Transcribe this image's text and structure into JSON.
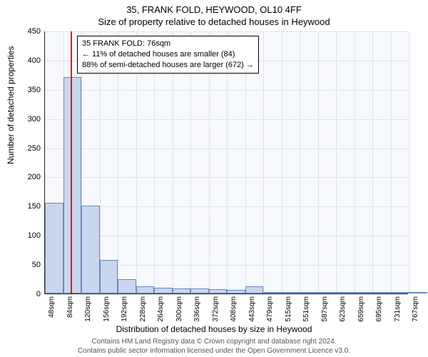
{
  "titles": {
    "line1": "35, FRANK FOLD, HEYWOOD, OL10 4FF",
    "line2": "Size of property relative to detached houses in Heywood"
  },
  "axis": {
    "ylabel": "Number of detached properties",
    "xlabel": "Distribution of detached houses by size in Heywood",
    "ylim": [
      0,
      450
    ],
    "ytick_step": 50,
    "yticks": [
      0,
      50,
      100,
      150,
      200,
      250,
      300,
      350,
      400,
      450
    ],
    "xticks": [
      "48sqm",
      "84sqm",
      "120sqm",
      "156sqm",
      "192sqm",
      "228sqm",
      "264sqm",
      "300sqm",
      "336sqm",
      "372sqm",
      "408sqm",
      "443sqm",
      "479sqm",
      "515sqm",
      "551sqm",
      "587sqm",
      "623sqm",
      "659sqm",
      "695sqm",
      "731sqm",
      "767sqm"
    ]
  },
  "chart": {
    "type": "histogram",
    "bar_fill": "#c9d6ed",
    "bar_border": "#6a88bf",
    "background": "#f7f9fc",
    "grid_color": "#dde3ec",
    "values": [
      155,
      370,
      150,
      58,
      25,
      12,
      10,
      8,
      8,
      7,
      6,
      12,
      3,
      2,
      2,
      2,
      2,
      2,
      2,
      2,
      2
    ]
  },
  "marker": {
    "color": "#ff0000",
    "fraction_x": 0.07
  },
  "annotation": {
    "line1": "35 FRANK FOLD: 76sqm",
    "line2": "← 11% of detached houses are smaller (84)",
    "line3": "88% of semi-detached houses are larger (672) →"
  },
  "footer": {
    "line1": "Contains HM Land Registry data © Crown copyright and database right 2024.",
    "line2": "Contains public sector information licensed under the Open Government Licence v3.0."
  }
}
